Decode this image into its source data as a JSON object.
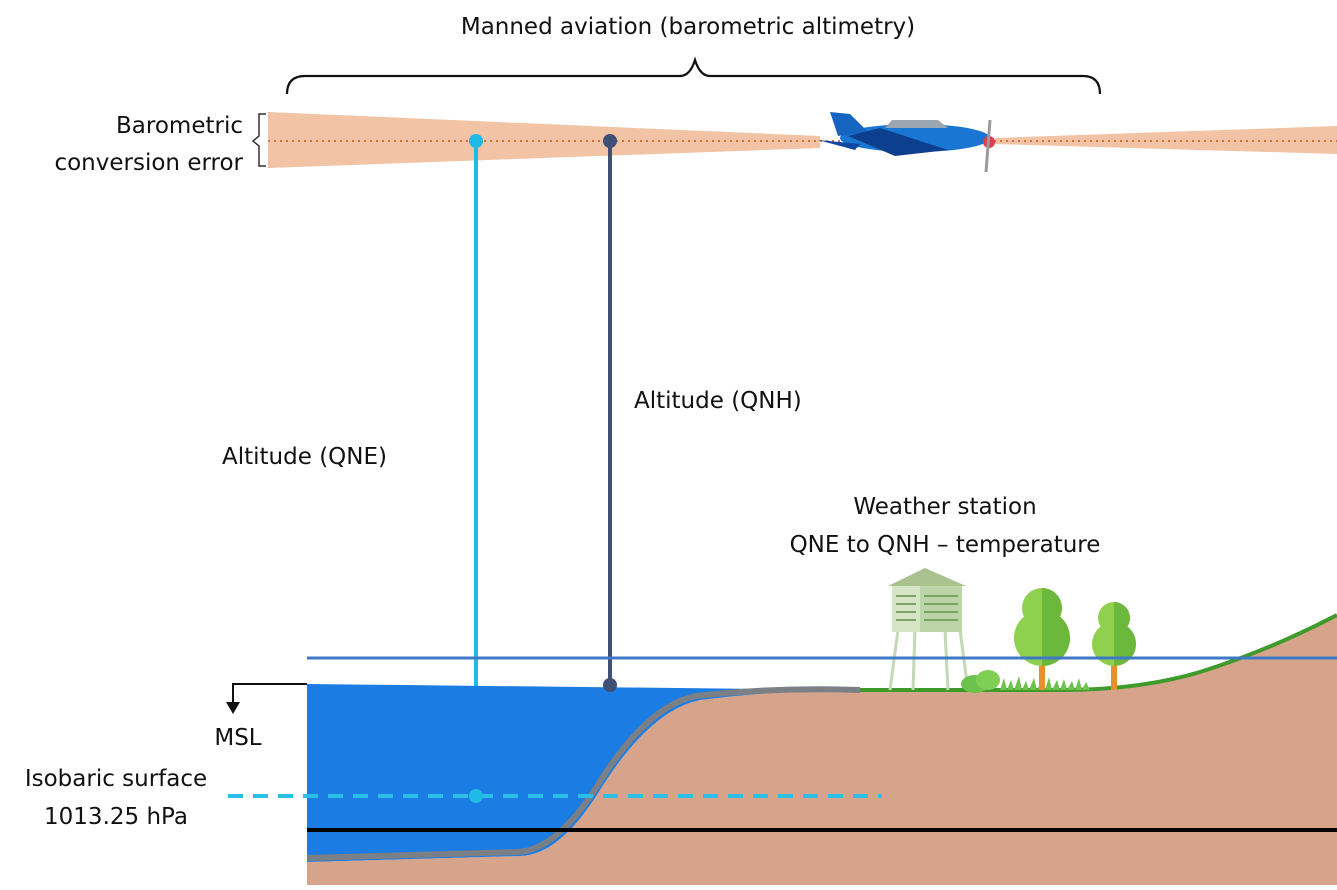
{
  "labels": {
    "manned_aviation": "Manned aviation (barometric altimetry)",
    "barometric_line1": "Barometric",
    "barometric_line2": "conversion error",
    "altitude_qnh": "Altitude (QNH)",
    "altitude_qne": "Altitude (QNE)",
    "weather_line1": "Weather station",
    "weather_line2": "QNE to QNH – temperature",
    "msl": "MSL",
    "isobaric_line1": "Isobaric surface",
    "isobaric_line2": "1013.25 hPa"
  },
  "colors": {
    "error_band": "#f2c3a5",
    "error_dotted": "#d9703a",
    "qne_line": "#1fbbe6",
    "qnh_line": "#3f4f75",
    "water": "#1b7ce3",
    "ground": "#d6a38b",
    "ground_edge": "#7b7f86",
    "grass": "#3d9a2b",
    "msl_line": "#3f78c4",
    "isobaric_dash": "#2cc0e8",
    "plane_body": "#1976d2",
    "plane_dark": "#0d3f8f"
  },
  "icons": [
    "airplane-icon",
    "weather-station-icon",
    "tree-icon",
    "bush-icon"
  ]
}
